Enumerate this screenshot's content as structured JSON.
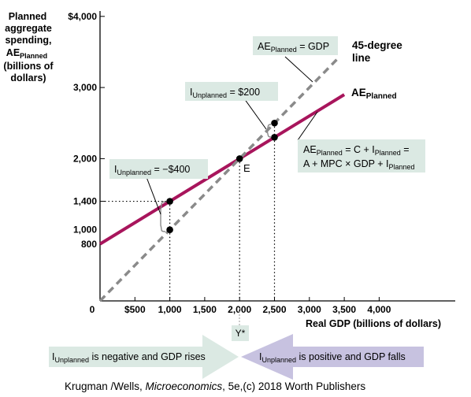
{
  "chart_data": {
    "type": "line",
    "y_axis_label": [
      "Planned",
      "aggregate",
      "spending,",
      "AE",
      "(billions of",
      "dollars)"
    ],
    "y_axis_label_subscript": "Planned",
    "x_axis_label": "Real GDP (billions of dollars)",
    "origin_label": "0",
    "x_ticks": [
      {
        "value": 500,
        "label": "$500"
      },
      {
        "value": 1000,
        "label": "1,000"
      },
      {
        "value": 1500,
        "label": "1,500"
      },
      {
        "value": 2000,
        "label": "2,000"
      },
      {
        "value": 2500,
        "label": "2,500"
      },
      {
        "value": 3000,
        "label": "3,000"
      },
      {
        "value": 3500,
        "label": "3,500"
      },
      {
        "value": 4000,
        "label": "4,000"
      }
    ],
    "y_ticks": [
      {
        "value": 800,
        "label": "800",
        "tick": false
      },
      {
        "value": 1000,
        "label": "1,000",
        "tick": false
      },
      {
        "value": 1400,
        "label": "1,400",
        "tick": true
      },
      {
        "value": 2000,
        "label": "2,000",
        "tick": true
      },
      {
        "value": 3000,
        "label": "3,000",
        "tick": true
      },
      {
        "value": 4000,
        "label": "$4,000",
        "tick": true
      }
    ],
    "xlim": [
      0,
      4800
    ],
    "ylim": [
      0,
      4000
    ],
    "series": [
      {
        "name": "AE",
        "name_subscript": "Planned",
        "color": "#a8155c",
        "style": "solid",
        "intercept": 800,
        "slope": 0.6,
        "x": [
          0,
          3500
        ],
        "y": [
          800,
          2900
        ]
      },
      {
        "name": "45-degree line",
        "color": "#8a8a8a",
        "style": "dashed",
        "intercept": 0,
        "slope": 1,
        "x": [
          0,
          3400
        ],
        "y": [
          0,
          3400
        ]
      }
    ],
    "points": [
      {
        "x": 1000,
        "y": 1400
      },
      {
        "x": 1000,
        "y": 1000
      },
      {
        "x": 2000,
        "y": 2000,
        "label": "E"
      },
      {
        "x": 2500,
        "y": 2500
      },
      {
        "x": 2500,
        "y": 2300
      }
    ],
    "equilibrium_label": "Y*",
    "equilibrium_x": 2000,
    "annotations": {
      "ae_equals_gdp": {
        "pre": "AE",
        "sub": "Planned",
        "post": " = GDP"
      },
      "unplanned_pos": {
        "pre": "I",
        "sub": "Unplanned",
        "post": " = $200"
      },
      "unplanned_neg": {
        "pre": "I",
        "sub": "Unplanned",
        "post": " = −$400"
      },
      "ae_formula_line1": {
        "pre": "AE",
        "sub": "Planned",
        "mid": " = C + I",
        "sub2": "Planned",
        "post": " ="
      },
      "ae_formula_line2": {
        "pre": "A + MPC × GDP + I",
        "sub": "Planned"
      }
    },
    "arrows": {
      "left": {
        "pre": "I",
        "sub": "Unplanned",
        "post": " is negative and GDP rises",
        "color": "#dbe9e3"
      },
      "right": {
        "pre": "I",
        "sub": "Unplanned",
        "post": " is positive and GDP falls",
        "color": "#c7c2e0"
      }
    }
  },
  "credit": {
    "pre": "Krugman /Wells, ",
    "italic": "Microeconomics",
    "post": ", 5e,(c) 2018 Worth Publishers"
  }
}
